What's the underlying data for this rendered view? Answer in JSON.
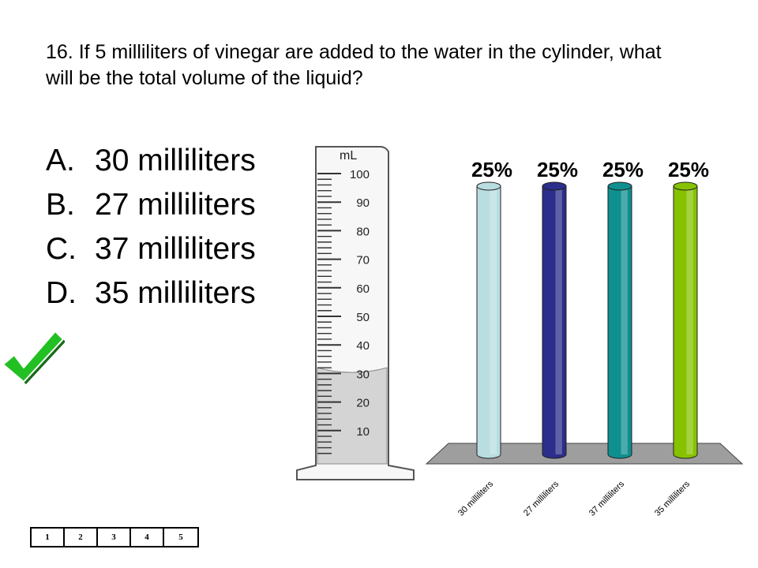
{
  "question": "16.  If 5 milliliters of vinegar are added to the water in the cylinder, what will be the total volume of the liquid?",
  "answers": [
    {
      "letter": "A.",
      "text": "30 milliliters"
    },
    {
      "letter": "B.",
      "text": "27 milliliters"
    },
    {
      "letter": "C.",
      "text": "37 milliliters"
    },
    {
      "letter": "D.",
      "text": "35 milliliters"
    }
  ],
  "correct_answer": "C.",
  "check_color": "#22c022",
  "cylinder": {
    "unit": "mL",
    "tick_labels": [
      "100",
      "90",
      "80",
      "70",
      "60",
      "50",
      "40",
      "30",
      "20",
      "10"
    ],
    "liquid_level_ml": 32,
    "liquid_color": "#d4d4d4"
  },
  "chart_data": {
    "type": "bar",
    "categories": [
      "30 milliliters",
      "27 milliliters",
      "37 milliliters",
      "35 milliliters"
    ],
    "values": [
      25,
      25,
      25,
      25
    ],
    "value_labels": [
      "25%",
      "25%",
      "25%",
      "25%"
    ],
    "colors": [
      "#b9dde0",
      "#2b2e8a",
      "#0f8f8f",
      "#86c200"
    ],
    "ylim": [
      0,
      25
    ],
    "grid": false,
    "legend": "none",
    "floor_color": "#9e9e9e"
  },
  "pager": {
    "pages": [
      "1",
      "2",
      "3",
      "4",
      "5"
    ]
  }
}
